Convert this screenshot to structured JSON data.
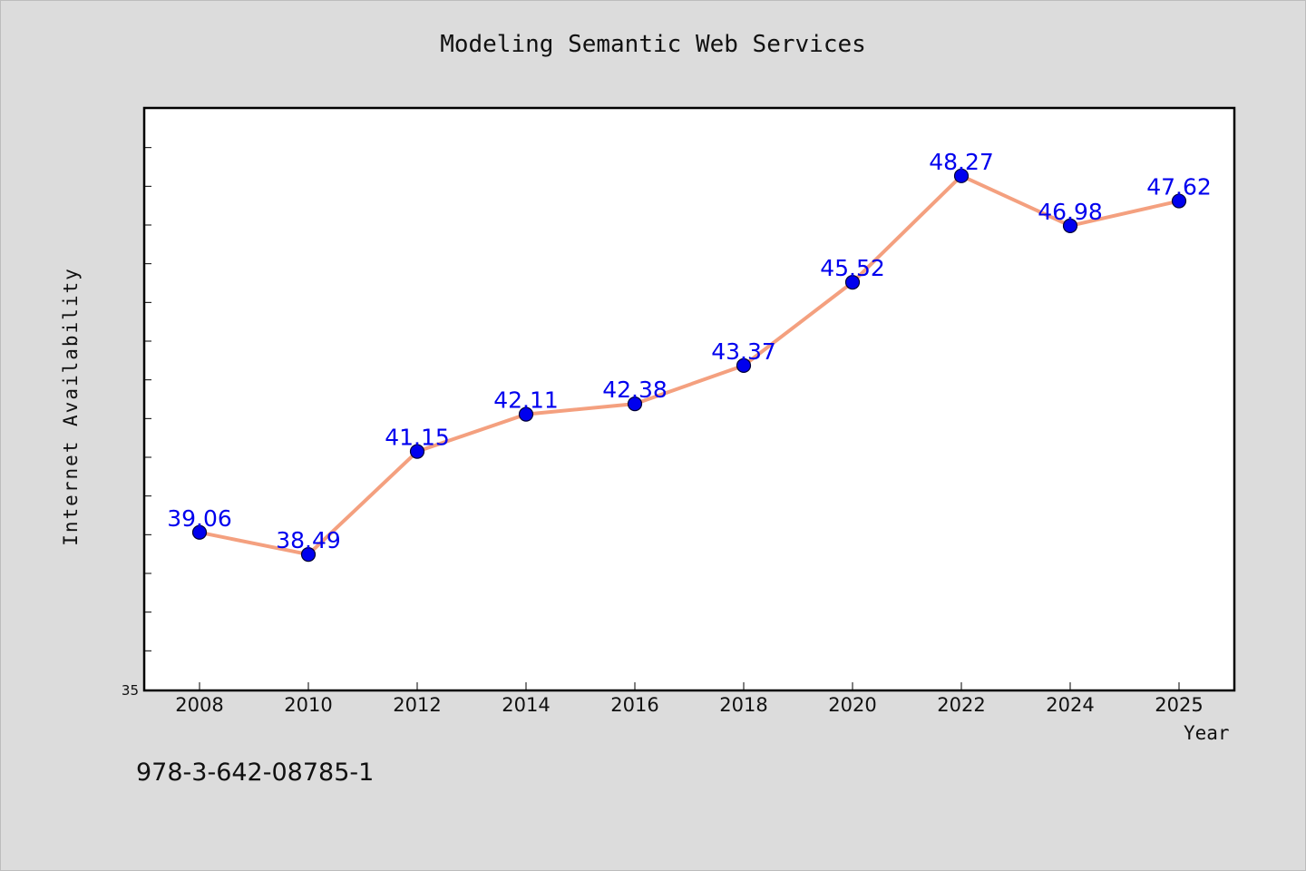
{
  "chart_data": {
    "type": "line",
    "title": "Modeling Semantic Web Services",
    "xlabel": "Year",
    "ylabel": "Internet Availability",
    "x": [
      "2008",
      "2010",
      "2012",
      "2014",
      "2016",
      "2018",
      "2020",
      "2022",
      "2024",
      "2025"
    ],
    "series": [
      {
        "values": [
          39.06,
          38.49,
          41.15,
          42.11,
          42.38,
          43.37,
          45.52,
          48.27,
          46.98,
          47.62
        ],
        "line_color": "#f4a07f",
        "marker_color": "#0000ee"
      }
    ],
    "data_labels": [
      "39.06",
      "38.49",
      "41.15",
      "42.11",
      "42.38",
      "43.37",
      "45.52",
      "48.27",
      "46.98",
      "47.62"
    ],
    "ylim": [
      35,
      50
    ],
    "y_tick_labels": [
      "35"
    ],
    "grid": false,
    "label_color": "#0000ee"
  },
  "footer": {
    "isbn": "978-3-642-08785-1"
  }
}
